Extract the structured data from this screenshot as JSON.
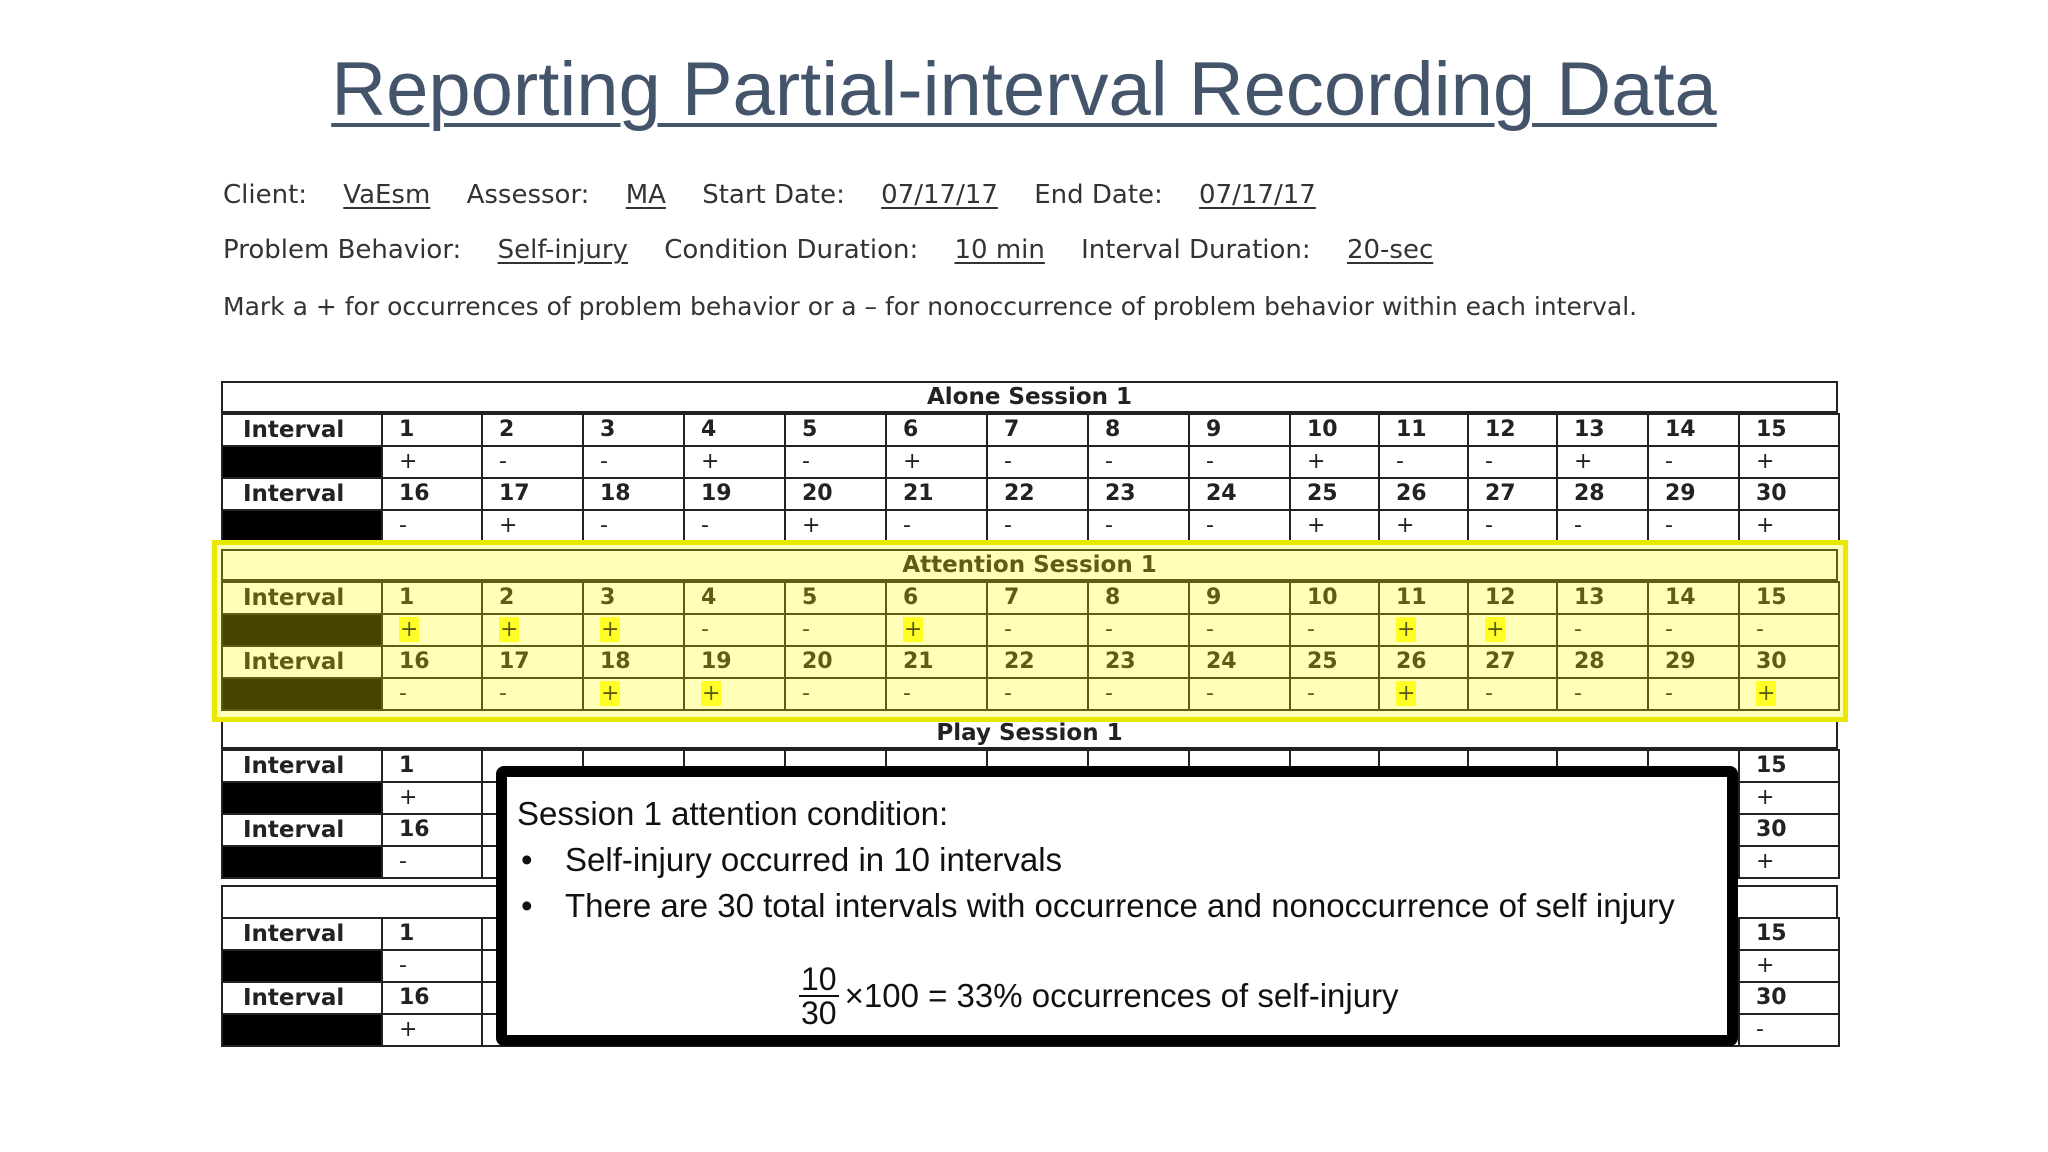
{
  "title": "Reporting Partial-interval Recording Data",
  "header": {
    "client_label": "Client:",
    "client_value": "VaEsm",
    "assessor_label": "Assessor:",
    "assessor_value": "MA",
    "start_label": "Start Date:",
    "start_value": "07/17/17",
    "end_label": "End Date:",
    "end_value": "07/17/17",
    "behavior_label": "Problem Behavior:",
    "behavior_value": "Self-injury",
    "condition_label": "Condition Duration:",
    "condition_value": "10 min",
    "interval_label": "Interval Duration:",
    "interval_value": "20-sec"
  },
  "instructions": "Mark a + for occurrences of problem behavior or a – for nonoccurrence of problem behavior within each interval.",
  "interval_label": "Interval",
  "sessions": [
    {
      "name": "Alone Session 1",
      "row1_numbers": [
        "1",
        "2",
        "3",
        "4",
        "5",
        "6",
        "7",
        "8",
        "9",
        "10",
        "11",
        "12",
        "13",
        "14",
        "15"
      ],
      "row1_marks": [
        "+",
        "-",
        "-",
        "+",
        "-",
        "+",
        "-",
        "-",
        "-",
        "+",
        "-",
        "-",
        "+",
        "-",
        "+"
      ],
      "row2_numbers": [
        "16",
        "17",
        "18",
        "19",
        "20",
        "21",
        "22",
        "23",
        "24",
        "25",
        "26",
        "27",
        "28",
        "29",
        "30"
      ],
      "row2_marks": [
        "-",
        "+",
        "-",
        "-",
        "+",
        "-",
        "-",
        "-",
        "-",
        "+",
        "+",
        "-",
        "-",
        "-",
        "+"
      ]
    },
    {
      "name": "Attention Session 1",
      "row1_numbers": [
        "1",
        "2",
        "3",
        "4",
        "5",
        "6",
        "7",
        "8",
        "9",
        "10",
        "11",
        "12",
        "13",
        "14",
        "15"
      ],
      "row1_marks": [
        "+",
        "+",
        "+",
        "-",
        "-",
        "+",
        "-",
        "-",
        "-",
        "-",
        "+",
        "+",
        "-",
        "-",
        "-"
      ],
      "row2_numbers": [
        "16",
        "17",
        "18",
        "19",
        "20",
        "21",
        "22",
        "23",
        "24",
        "25",
        "26",
        "27",
        "28",
        "29",
        "30"
      ],
      "row2_marks": [
        "-",
        "-",
        "+",
        "+",
        "-",
        "-",
        "-",
        "-",
        "-",
        "-",
        "+",
        "-",
        "-",
        "-",
        "+"
      ]
    },
    {
      "name": "Play Session 1",
      "row1_numbers": [
        "1",
        "",
        "",
        "",
        "",
        "",
        "",
        "",
        "",
        "",
        "",
        "",
        "",
        "",
        "15"
      ],
      "row1_marks": [
        "+",
        "",
        "",
        "",
        "",
        "",
        "",
        "",
        "",
        "",
        "",
        "",
        "",
        "",
        "+"
      ],
      "row2_numbers": [
        "16",
        "",
        "",
        "",
        "",
        "",
        "",
        "",
        "",
        "",
        "",
        "",
        "",
        "",
        "30"
      ],
      "row2_marks": [
        "-",
        "",
        "",
        "",
        "",
        "",
        "",
        "",
        "",
        "",
        "",
        "",
        "",
        "",
        "+"
      ]
    },
    {
      "name": "",
      "row1_numbers": [
        "1",
        "",
        "",
        "",
        "",
        "",
        "",
        "",
        "",
        "",
        "",
        "",
        "",
        "",
        "15"
      ],
      "row1_marks": [
        "-",
        "",
        "",
        "",
        "",
        "",
        "",
        "",
        "",
        "",
        "",
        "",
        "",
        "",
        "+"
      ],
      "row2_numbers": [
        "16",
        "",
        "",
        "",
        "",
        "",
        "",
        "",
        "",
        "",
        "",
        "",
        "",
        "",
        "30"
      ],
      "row2_marks": [
        "+",
        "",
        "",
        "",
        "",
        "",
        "",
        "",
        "",
        "",
        "",
        "",
        "",
        "",
        "-"
      ]
    }
  ],
  "callout": {
    "heading": "Session 1 attention condition:",
    "bullet": "•",
    "bullets": [
      "Self-injury occurred in 10 intervals",
      "There are 30 total intervals with occurrence and nonoccurrence of self injury"
    ],
    "numerator": "10",
    "denominator": "30",
    "formula_rest": "×100 = 33% occurrences of self-injury"
  }
}
